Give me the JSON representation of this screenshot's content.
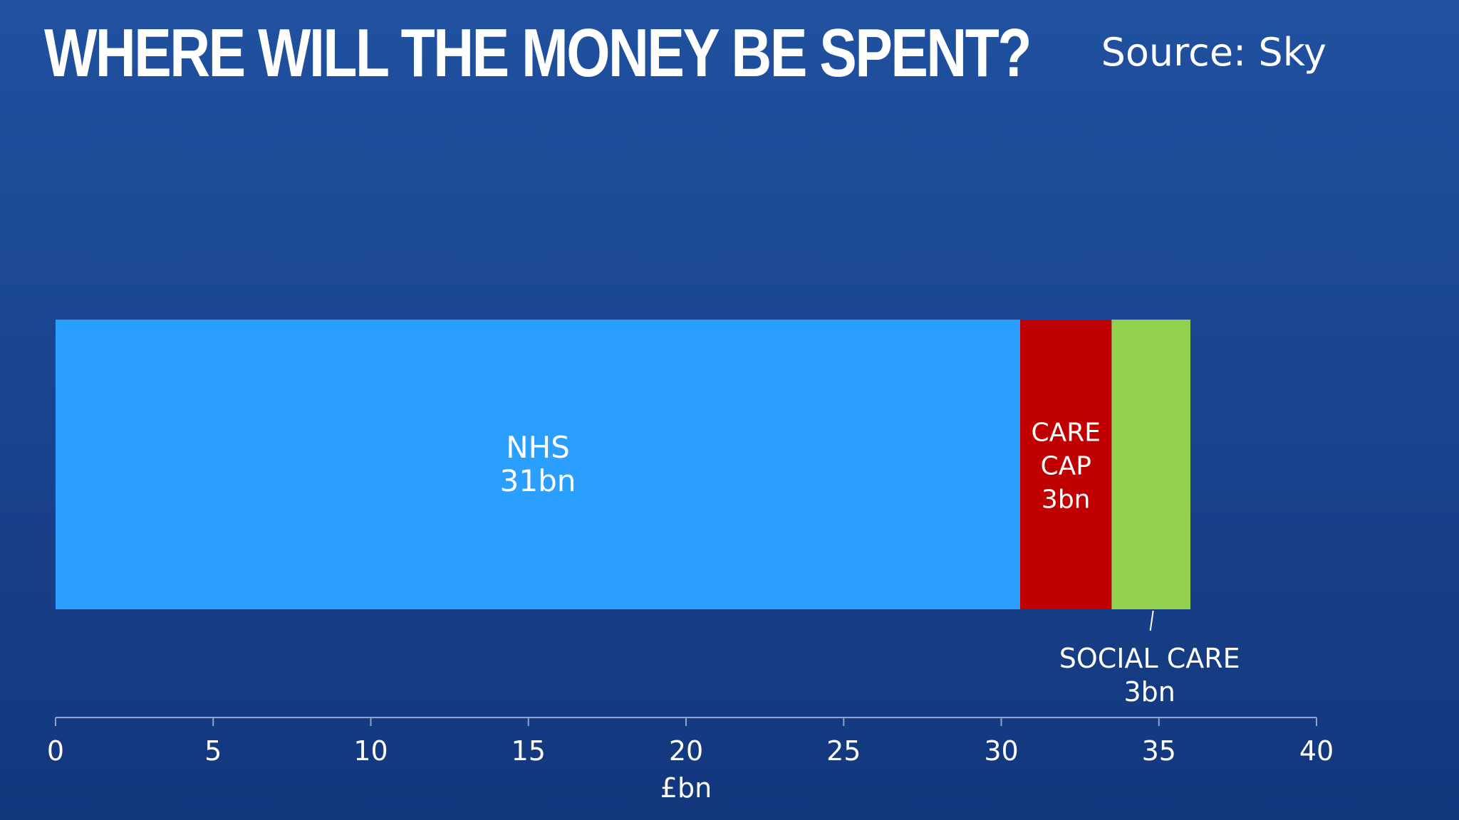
{
  "header": {
    "title": "WHERE WILL THE MONEY BE SPENT?",
    "source": "Source: Sky"
  },
  "colors": {
    "nhs": "#2a9fff",
    "care_cap": "#c00000",
    "social_care": "#92d050",
    "axis": "#8ea3c9"
  },
  "chart_data": {
    "type": "bar",
    "orientation": "horizontal",
    "stacked": true,
    "title": "WHERE WILL THE MONEY BE SPENT?",
    "xlabel": "£bn",
    "ylabel": "",
    "xlim": [
      0,
      40
    ],
    "xticks": [
      0,
      5,
      10,
      15,
      20,
      25,
      30,
      35,
      40
    ],
    "grid": false,
    "series": [
      {
        "name": "NHS",
        "value": 30.6,
        "label_lines": [
          "NHS",
          "31bn"
        ],
        "color_key": "nhs",
        "label_position": "inside"
      },
      {
        "name": "CARE CAP",
        "value": 2.9,
        "label_lines": [
          "CARE",
          "CAP",
          "3bn"
        ],
        "color_key": "care_cap",
        "label_position": "inside"
      },
      {
        "name": "SOCIAL CARE",
        "value": 2.5,
        "label_lines": [
          "SOCIAL CARE",
          "3bn"
        ],
        "color_key": "social_care",
        "label_position": "below"
      }
    ]
  }
}
